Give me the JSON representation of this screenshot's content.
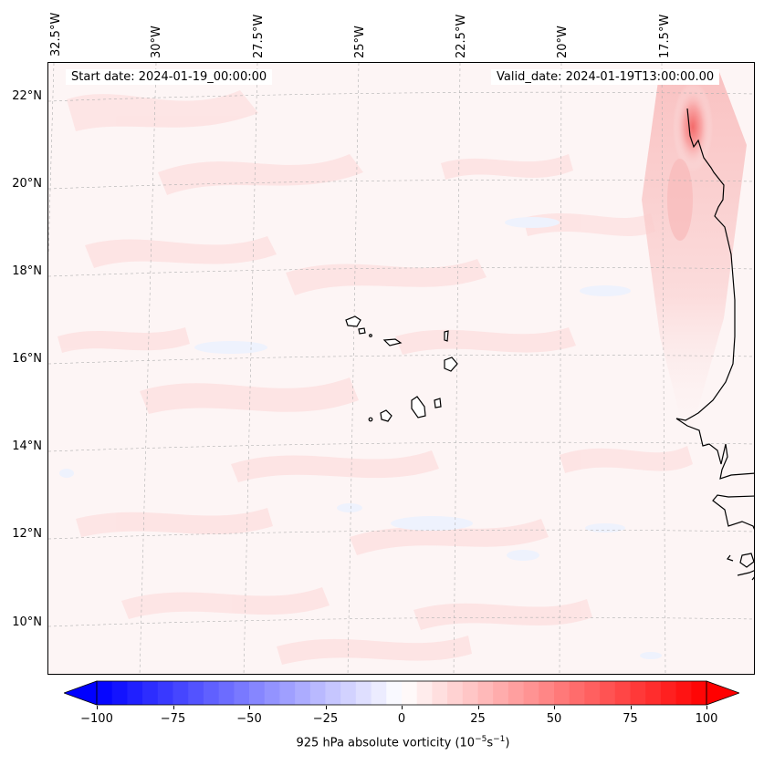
{
  "header": {
    "start_date": "Start date: 2024-01-19_00:00:00",
    "valid_date": "Valid_date: 2024-01-19T13:00:00.00"
  },
  "longitude_labels": [
    "32.5°W",
    "30°W",
    "27.5°W",
    "25°W",
    "22.5°W",
    "20°W",
    "17.5°W"
  ],
  "latitude_labels": [
    "22°N",
    "20°N",
    "18°N",
    "16°N",
    "14°N",
    "12°N",
    "10°N"
  ],
  "colorbar": {
    "min": -100,
    "max": 100,
    "ticks": [
      "−100",
      "−75",
      "−50",
      "−25",
      "0",
      "25",
      "50",
      "75",
      "100"
    ],
    "label_text": "925 hPa absolute vorticity (10",
    "label_exp1": "−5",
    "label_mid": "s",
    "label_exp2": "−1",
    "label_close": ")",
    "negative_color": "#0000ff",
    "neutral_color": "#ffffff",
    "positive_color": "#ff0000"
  },
  "colors": {
    "coastline": "#000000",
    "gridline": "#b0b0b0",
    "background_field": "#fdf5f5",
    "weak_positive": "#fde3e3",
    "strong_positive": "#f77f7f",
    "weak_negative": "#eef2fd"
  }
}
